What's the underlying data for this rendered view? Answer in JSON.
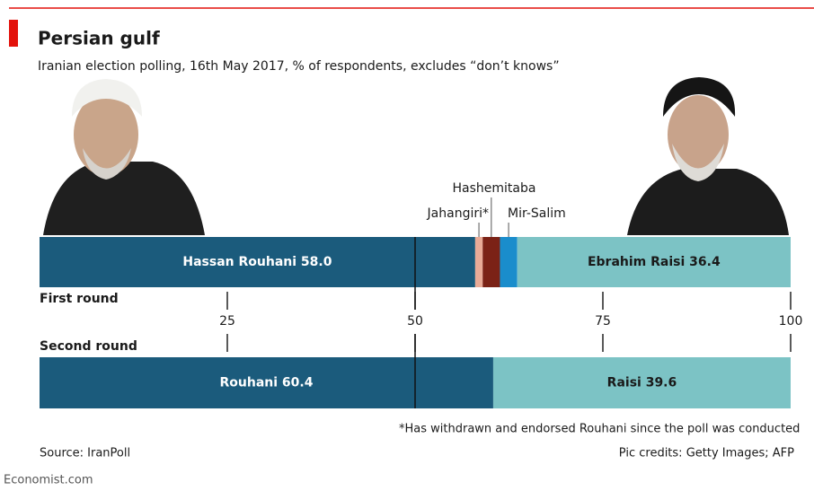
{
  "chart_data": {
    "type": "stacked-hbar",
    "title": "Persian gulf",
    "subtitle": "Iranian election polling, 16th May 2017, % of respondents, excludes “don’t knows”",
    "categories": [
      "First round",
      "Second round"
    ],
    "series": [
      {
        "color": "#1b5b7c",
        "values": [
          58.0,
          60.4
        ],
        "value_labels": [
          "Hassan Rouhani 58.0",
          "Rouhani 60.4"
        ],
        "label_color": "#ffffff"
      },
      {
        "name": "Jahangiri*",
        "color": "#e9ab97",
        "values": [
          1.0,
          null
        ]
      },
      {
        "name": "Hashemitaba",
        "color": "#7b2216",
        "values": [
          2.3,
          null
        ]
      },
      {
        "name": "Mir-Salim",
        "color": "#1a8dcc",
        "values": [
          2.3,
          null
        ]
      },
      {
        "color": "#7cc3c5",
        "values": [
          36.4,
          39.6
        ],
        "value_labels": [
          "Ebrahim Raisi 36.4",
          "Raisi 39.6"
        ],
        "label_color": "#1a1a1a"
      }
    ],
    "xlim": [
      0,
      100
    ],
    "xticks": [
      25,
      50,
      75,
      100
    ],
    "reference_line": 50,
    "footnote": "*Has withdrawn and endorsed Rouhani since the poll was conducted",
    "source": "Source: IranPoll",
    "credits": "Pic credits: Getty Images; AFP",
    "brand": "Economist.com"
  }
}
